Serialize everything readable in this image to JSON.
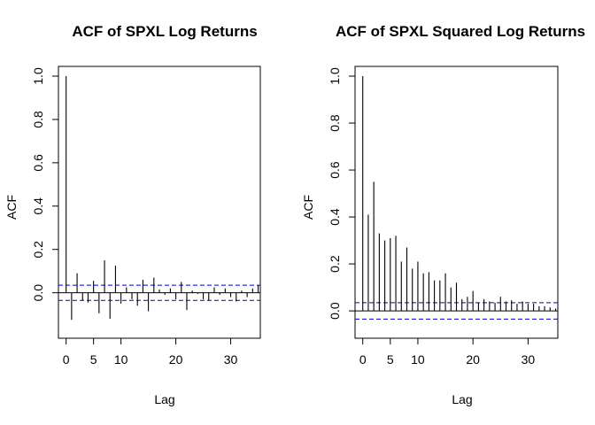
{
  "chart_data": [
    {
      "type": "bar",
      "title": "ACF of SPXL Log Returns",
      "xlabel": "Lag",
      "ylabel": "ACF",
      "xlim": [
        -1.4,
        35.4
      ],
      "ylim": [
        -0.165,
        1.0
      ],
      "xticks": [
        0,
        5,
        10,
        20,
        30
      ],
      "yticks": [
        0.0,
        0.2,
        0.4,
        0.6,
        0.8,
        1.0
      ],
      "ytick_labels": [
        "0.0",
        "0.2",
        "0.4",
        "0.6",
        "0.8",
        "1.0"
      ],
      "conf_limit": 0.035,
      "lags": [
        0,
        1,
        2,
        3,
        4,
        5,
        6,
        7,
        8,
        9,
        10,
        11,
        12,
        13,
        14,
        15,
        16,
        17,
        18,
        19,
        20,
        21,
        22,
        23,
        24,
        25,
        26,
        27,
        28,
        29,
        30,
        31,
        32,
        33,
        34,
        35
      ],
      "values": [
        1.0,
        -0.125,
        0.09,
        -0.035,
        -0.045,
        0.055,
        -0.095,
        0.15,
        -0.12,
        0.125,
        -0.05,
        0.025,
        -0.03,
        -0.06,
        0.06,
        -0.085,
        0.07,
        0.015,
        -0.01,
        0.02,
        -0.03,
        0.05,
        -0.08,
        0.01,
        -0.005,
        -0.03,
        -0.035,
        0.025,
        -0.01,
        0.02,
        -0.02,
        -0.04,
        0.01,
        -0.02,
        0.02,
        0.035
      ]
    },
    {
      "type": "bar",
      "title": "ACF of SPXL Squared Log Returns",
      "xlabel": "Lag",
      "ylabel": "ACF",
      "xlim": [
        -1.4,
        35.4
      ],
      "ylim": [
        -0.075,
        1.0
      ],
      "xticks": [
        0,
        5,
        10,
        20,
        30
      ],
      "yticks": [
        0.0,
        0.2,
        0.4,
        0.6,
        0.8,
        1.0
      ],
      "ytick_labels": [
        "0.0",
        "0.2",
        "0.4",
        "0.6",
        "0.8",
        "1.0"
      ],
      "conf_limit": 0.035,
      "lags": [
        0,
        1,
        2,
        3,
        4,
        5,
        6,
        7,
        8,
        9,
        10,
        11,
        12,
        13,
        14,
        15,
        16,
        17,
        18,
        19,
        20,
        21,
        22,
        23,
        24,
        25,
        26,
        27,
        28,
        29,
        30,
        31,
        32,
        33,
        34,
        35
      ],
      "values": [
        1.0,
        0.41,
        0.55,
        0.33,
        0.3,
        0.31,
        0.32,
        0.21,
        0.27,
        0.18,
        0.21,
        0.16,
        0.165,
        0.13,
        0.13,
        0.16,
        0.1,
        0.12,
        0.05,
        0.06,
        0.085,
        0.035,
        0.05,
        0.04,
        0.035,
        0.06,
        0.04,
        0.045,
        0.03,
        0.04,
        0.03,
        0.03,
        0.02,
        0.02,
        0.015,
        0.01
      ]
    }
  ],
  "colors": {
    "conf_line": "#0000cc",
    "axis": "#000000",
    "bars": "#000000"
  }
}
